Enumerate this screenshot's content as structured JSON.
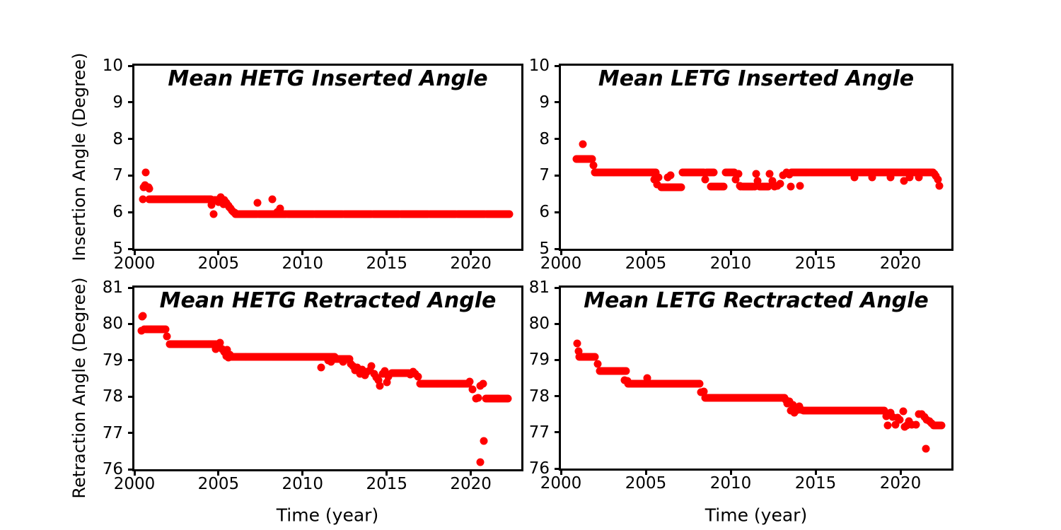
{
  "figure": {
    "background_color": "#ffffff",
    "axis_color": "#000000",
    "marker_color": "#ff0000",
    "left_ylabel_top": "Insertion Angle (Degree)",
    "left_ylabel_bottom": "Retraction Angle (Degree)"
  },
  "chart_data": [
    {
      "type": "scatter",
      "title": "Mean HETG Inserted Angle",
      "xlabel": "",
      "ylabel": "Insertion Angle (Degree)",
      "xlim": [
        2000,
        2023
      ],
      "ylim": [
        5,
        10
      ],
      "xticks": [
        2000,
        2005,
        2010,
        2015,
        2020
      ],
      "yticks": [
        5,
        6,
        7,
        8,
        9,
        10
      ],
      "marker_color": "#ff0000",
      "bands": [
        [
          2000.9,
          2004.55,
          6.35,
          46
        ],
        [
          2004.75,
          2005.35,
          6.33,
          9
        ],
        [
          2006.0,
          2022.3,
          5.95,
          190
        ]
      ],
      "points": [
        [
          2000.5,
          6.35
        ],
        [
          2000.55,
          6.68
        ],
        [
          2000.62,
          6.73
        ],
        [
          2000.68,
          7.08
        ],
        [
          2000.82,
          6.67
        ],
        [
          2000.9,
          6.64
        ],
        [
          2004.6,
          6.2
        ],
        [
          2004.72,
          5.95
        ],
        [
          2005.0,
          6.28
        ],
        [
          2005.15,
          6.4
        ],
        [
          2005.3,
          6.22
        ],
        [
          2005.4,
          6.3
        ],
        [
          2005.45,
          6.26
        ],
        [
          2005.52,
          6.22
        ],
        [
          2005.58,
          6.18
        ],
        [
          2005.65,
          6.14
        ],
        [
          2005.72,
          6.1
        ],
        [
          2005.8,
          6.05
        ],
        [
          2005.88,
          6.01
        ],
        [
          2005.95,
          5.98
        ],
        [
          2007.3,
          6.25
        ],
        [
          2008.2,
          6.35
        ],
        [
          2008.5,
          6.0
        ],
        [
          2008.65,
          6.1
        ]
      ]
    },
    {
      "type": "scatter",
      "title": "Mean LETG Inserted Angle",
      "xlabel": "",
      "ylabel": "",
      "xlim": [
        2000,
        2023
      ],
      "ylim": [
        5,
        10
      ],
      "xticks": [
        2000,
        2005,
        2010,
        2015,
        2020
      ],
      "yticks": [
        5,
        6,
        7,
        8,
        9,
        10
      ],
      "marker_color": "#ff0000",
      "bands": [
        [
          2000.9,
          2001.85,
          7.46,
          12
        ],
        [
          2002.0,
          2005.6,
          7.08,
          45
        ],
        [
          2005.9,
          2007.1,
          6.68,
          15
        ],
        [
          2007.15,
          2008.4,
          7.08,
          16
        ],
        [
          2008.6,
          2009.0,
          7.08,
          6
        ],
        [
          2008.85,
          2009.6,
          6.7,
          10
        ],
        [
          2009.7,
          2010.2,
          7.08,
          7
        ],
        [
          2010.6,
          2011.4,
          6.7,
          10
        ],
        [
          2011.7,
          2012.2,
          6.7,
          7
        ],
        [
          2013.6,
          2021.9,
          7.08,
          105
        ]
      ],
      "points": [
        [
          2001.3,
          7.85
        ],
        [
          2001.9,
          7.28
        ],
        [
          2005.5,
          6.9
        ],
        [
          2005.65,
          6.75
        ],
        [
          2005.75,
          6.95
        ],
        [
          2006.3,
          6.95
        ],
        [
          2006.45,
          7.0
        ],
        [
          2008.5,
          6.9
        ],
        [
          2010.3,
          6.9
        ],
        [
          2010.45,
          7.05
        ],
        [
          2010.55,
          6.72
        ],
        [
          2011.5,
          7.05
        ],
        [
          2011.6,
          6.85
        ],
        [
          2012.3,
          7.05
        ],
        [
          2012.45,
          6.85
        ],
        [
          2012.6,
          6.7
        ],
        [
          2012.75,
          6.72
        ],
        [
          2012.9,
          6.78
        ],
        [
          2013.1,
          7.0
        ],
        [
          2013.3,
          7.08
        ],
        [
          2013.45,
          7.02
        ],
        [
          2013.55,
          6.7
        ],
        [
          2014.1,
          6.72
        ],
        [
          2017.3,
          6.95
        ],
        [
          2018.35,
          6.95
        ],
        [
          2019.4,
          6.95
        ],
        [
          2020.2,
          6.85
        ],
        [
          2020.55,
          6.95
        ],
        [
          2021.1,
          6.95
        ],
        [
          2022.0,
          7.05
        ],
        [
          2022.1,
          6.98
        ],
        [
          2022.2,
          6.9
        ],
        [
          2022.3,
          6.72
        ]
      ]
    },
    {
      "type": "scatter",
      "title": "Mean HETG Retracted Angle",
      "xlabel": "Time (year)",
      "ylabel": "Retraction Angle (Degree)",
      "xlim": [
        2000,
        2023
      ],
      "ylim": [
        76,
        81
      ],
      "xticks": [
        2000,
        2005,
        2010,
        2015,
        2020
      ],
      "yticks": [
        76,
        77,
        78,
        79,
        80,
        81
      ],
      "marker_color": "#ff0000",
      "bands": [
        [
          2000.7,
          2001.85,
          79.85,
          15
        ],
        [
          2002.1,
          2005.05,
          79.45,
          37
        ],
        [
          2005.75,
          2011.9,
          79.1,
          75
        ],
        [
          2011.95,
          2012.8,
          79.03,
          11
        ],
        [
          2015.3,
          2016.3,
          78.65,
          13
        ],
        [
          2017.0,
          2019.85,
          78.35,
          36
        ],
        [
          2020.9,
          2022.2,
          77.95,
          17
        ]
      ],
      "points": [
        [
          2000.42,
          79.82
        ],
        [
          2000.46,
          80.2
        ],
        [
          2000.52,
          80.22
        ],
        [
          2000.58,
          79.85
        ],
        [
          2001.95,
          79.65
        ],
        [
          2004.85,
          79.3
        ],
        [
          2004.95,
          79.38
        ],
        [
          2005.1,
          79.48
        ],
        [
          2005.2,
          79.3
        ],
        [
          2005.35,
          79.22
        ],
        [
          2005.45,
          79.12
        ],
        [
          2005.5,
          79.28
        ],
        [
          2005.6,
          79.07
        ],
        [
          2005.68,
          79.15
        ],
        [
          2011.1,
          78.8
        ],
        [
          2011.5,
          79.0
        ],
        [
          2011.7,
          78.96
        ],
        [
          2012.4,
          78.95
        ],
        [
          2012.85,
          78.9
        ],
        [
          2013.0,
          78.85
        ],
        [
          2013.1,
          78.72
        ],
        [
          2013.25,
          78.8
        ],
        [
          2013.4,
          78.62
        ],
        [
          2013.55,
          78.75
        ],
        [
          2013.7,
          78.58
        ],
        [
          2013.85,
          78.68
        ],
        [
          2014.0,
          78.73
        ],
        [
          2014.1,
          78.85
        ],
        [
          2014.25,
          78.62
        ],
        [
          2014.4,
          78.52
        ],
        [
          2014.5,
          78.45
        ],
        [
          2014.6,
          78.3
        ],
        [
          2014.75,
          78.62
        ],
        [
          2014.9,
          78.7
        ],
        [
          2015.0,
          78.4
        ],
        [
          2015.1,
          78.55
        ],
        [
          2016.4,
          78.6
        ],
        [
          2016.55,
          78.68
        ],
        [
          2016.7,
          78.62
        ],
        [
          2016.85,
          78.55
        ],
        [
          2019.92,
          78.42
        ],
        [
          2020.1,
          78.2
        ],
        [
          2020.3,
          77.95
        ],
        [
          2020.42,
          77.96
        ],
        [
          2020.58,
          78.3
        ],
        [
          2020.72,
          78.35
        ],
        [
          2020.55,
          76.2
        ],
        [
          2020.78,
          76.78
        ]
      ]
    },
    {
      "type": "scatter",
      "title": "Mean LETG Rectracted Angle",
      "xlabel": "Time (year)",
      "ylabel": "",
      "xlim": [
        2000,
        2023
      ],
      "ylim": [
        76,
        81
      ],
      "xticks": [
        2000,
        2005,
        2010,
        2015,
        2020
      ],
      "yticks": [
        76,
        77,
        78,
        79,
        80,
        81
      ],
      "marker_color": "#ff0000",
      "bands": [
        [
          2001.1,
          2002.0,
          79.08,
          12
        ],
        [
          2002.3,
          2003.85,
          78.7,
          20
        ],
        [
          2003.95,
          2008.15,
          78.35,
          52
        ],
        [
          2008.5,
          2013.15,
          77.95,
          57
        ],
        [
          2014.3,
          2019.05,
          77.6,
          58
        ],
        [
          2021.95,
          2022.4,
          77.2,
          7
        ]
      ],
      "points": [
        [
          2000.95,
          79.45
        ],
        [
          2001.05,
          79.25
        ],
        [
          2002.15,
          78.9
        ],
        [
          2003.75,
          78.45
        ],
        [
          2003.9,
          78.42
        ],
        [
          2005.1,
          78.5
        ],
        [
          2008.25,
          78.1
        ],
        [
          2008.4,
          78.12
        ],
        [
          2013.25,
          77.9
        ],
        [
          2013.35,
          77.8
        ],
        [
          2013.45,
          77.85
        ],
        [
          2013.55,
          77.6
        ],
        [
          2013.65,
          77.75
        ],
        [
          2013.75,
          77.55
        ],
        [
          2013.85,
          77.68
        ],
        [
          2013.95,
          77.62
        ],
        [
          2014.05,
          77.72
        ],
        [
          2014.15,
          77.63
        ],
        [
          2019.15,
          77.45
        ],
        [
          2019.25,
          77.2
        ],
        [
          2019.4,
          77.55
        ],
        [
          2019.55,
          77.42
        ],
        [
          2019.7,
          77.22
        ],
        [
          2019.85,
          77.4
        ],
        [
          2019.95,
          77.35
        ],
        [
          2020.15,
          77.58
        ],
        [
          2020.25,
          77.16
        ],
        [
          2020.38,
          77.2
        ],
        [
          2020.5,
          77.3
        ],
        [
          2020.65,
          77.22
        ],
        [
          2020.9,
          77.22
        ],
        [
          2021.1,
          77.5
        ],
        [
          2021.25,
          77.5
        ],
        [
          2021.4,
          77.42
        ],
        [
          2021.55,
          77.35
        ],
        [
          2021.7,
          77.3
        ],
        [
          2021.85,
          77.25
        ],
        [
          2021.5,
          76.55
        ]
      ]
    }
  ]
}
